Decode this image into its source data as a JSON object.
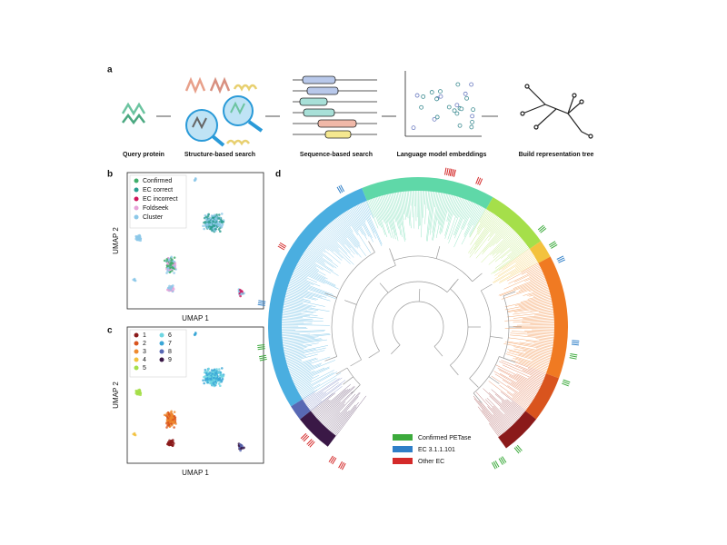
{
  "panels": {
    "a": {
      "label": "a",
      "steps": [
        "Query protein",
        "Structure-based search",
        "Sequence-based search",
        "Language model embeddings",
        "Build representation tree"
      ]
    },
    "b": {
      "label": "b",
      "xlabel": "UMAP 1",
      "ylabel": "UMAP 2",
      "legend": [
        {
          "name": "Confirmed",
          "color": "#3fae6b"
        },
        {
          "name": "EC correct",
          "color": "#2a9d8f"
        },
        {
          "name": "EC incorrect",
          "color": "#d0145a"
        },
        {
          "name": "Foldseek",
          "color": "#e7a3d8"
        },
        {
          "name": "Cluster",
          "color": "#8cc8e8"
        }
      ]
    },
    "c": {
      "label": "c",
      "xlabel": "UMAP 1",
      "ylabel": "UMAP 2",
      "legend": [
        {
          "name": "1",
          "color": "#8b1a1a"
        },
        {
          "name": "2",
          "color": "#d9541e"
        },
        {
          "name": "3",
          "color": "#ef8a2e"
        },
        {
          "name": "4",
          "color": "#f3c23e"
        },
        {
          "name": "5",
          "color": "#a5df4a"
        },
        {
          "name": "6",
          "color": "#6ed6e2"
        },
        {
          "name": "7",
          "color": "#3aa6d6"
        },
        {
          "name": "8",
          "color": "#5868b4"
        },
        {
          "name": "9",
          "color": "#3a1846"
        }
      ]
    },
    "d": {
      "label": "d",
      "legend": [
        {
          "name": "Confirmed PETase",
          "color": "#3caa3c"
        },
        {
          "name": "EC 3.1.1.101",
          "color": "#2f7fc8"
        },
        {
          "name": "Other EC",
          "color": "#d42a2a"
        }
      ]
    }
  }
}
